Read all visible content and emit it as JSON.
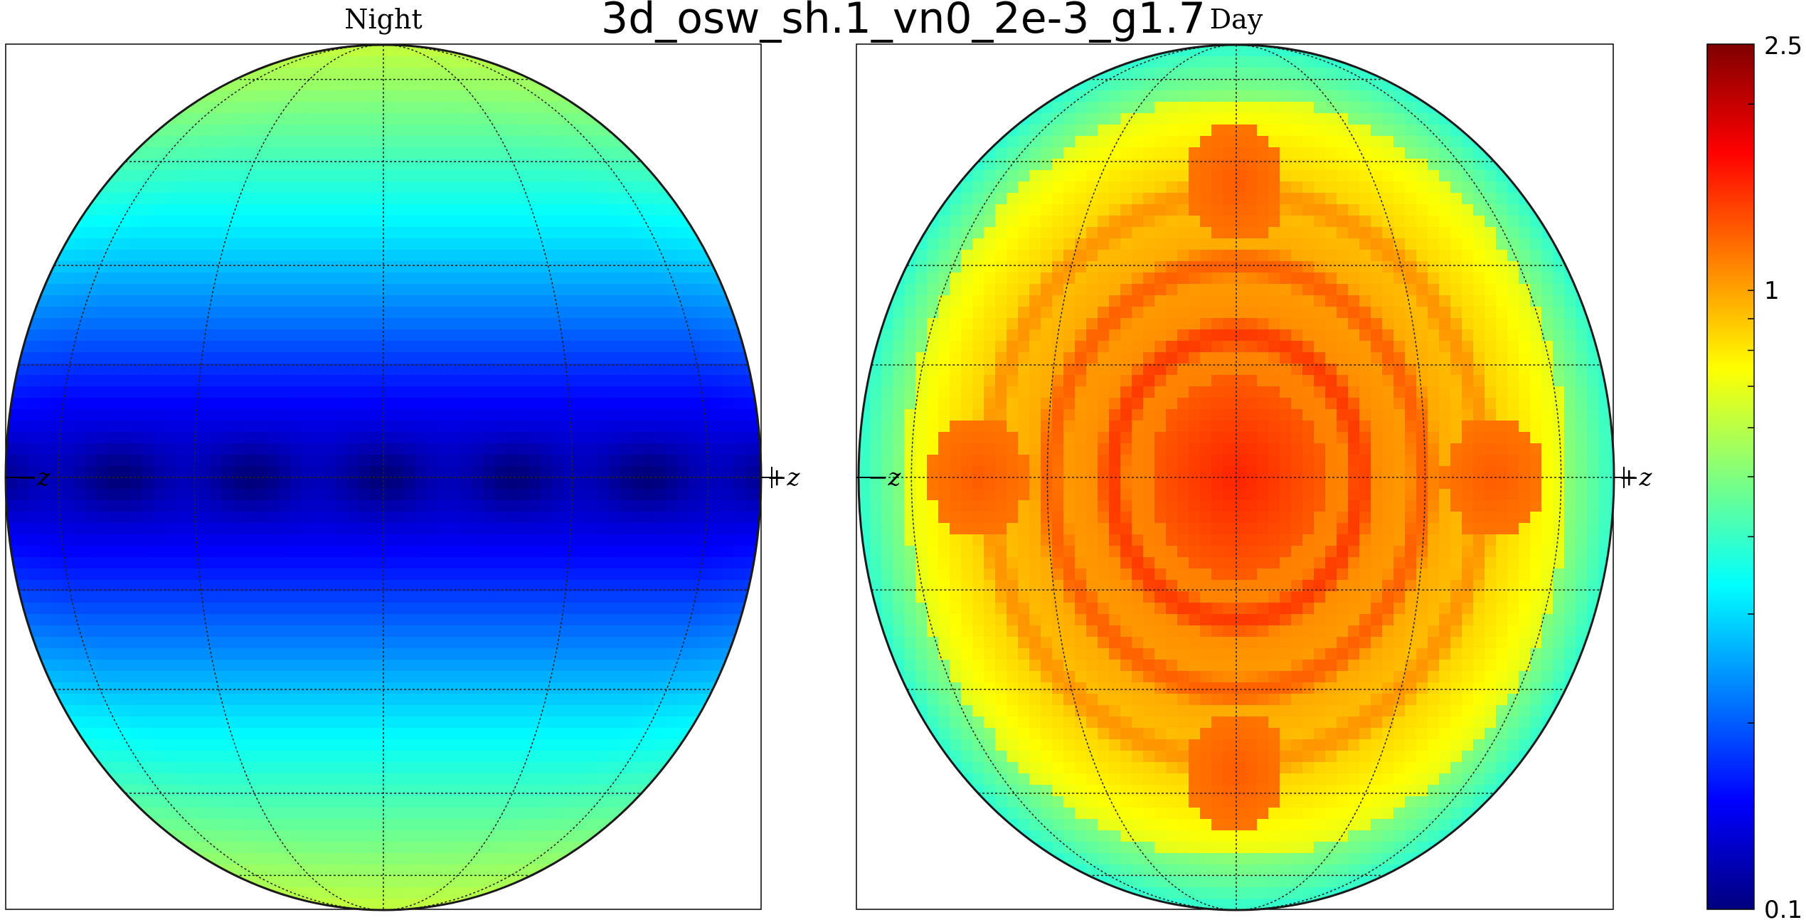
{
  "title": "3d_osw_sh.1_vn0_2e-3_g1.7",
  "colorbar": {
    "scale": "log",
    "min": 0.1,
    "max": 2.5,
    "tick_labels": [
      "2.5",
      "1",
      "0.1"
    ],
    "colormap": "jet",
    "jet_stops": [
      "#00007f",
      "#0000ff",
      "#007fff",
      "#00ffff",
      "#7fff7f",
      "#ffff00",
      "#ff7f00",
      "#ff0000",
      "#7f0000"
    ]
  },
  "chart_data": [
    {
      "type": "heatmap",
      "title": "Night",
      "projection": "mollweide-like sky map",
      "axis_labels": {
        "left": "−z",
        "right": "+z"
      },
      "value_range": [
        0.1,
        0.6
      ],
      "description_values": {
        "equator_band_min": 0.12,
        "pole_max": 0.6
      }
    },
    {
      "type": "heatmap",
      "title": "Day",
      "projection": "mollweide-like sky map",
      "axis_labels": {
        "left": "−z",
        "right": "+z"
      },
      "value_range": [
        0.5,
        1.8
      ],
      "description_values": {
        "center_peak": 1.4,
        "ring_peak": 1.8,
        "limb_min": 0.5
      }
    }
  ]
}
